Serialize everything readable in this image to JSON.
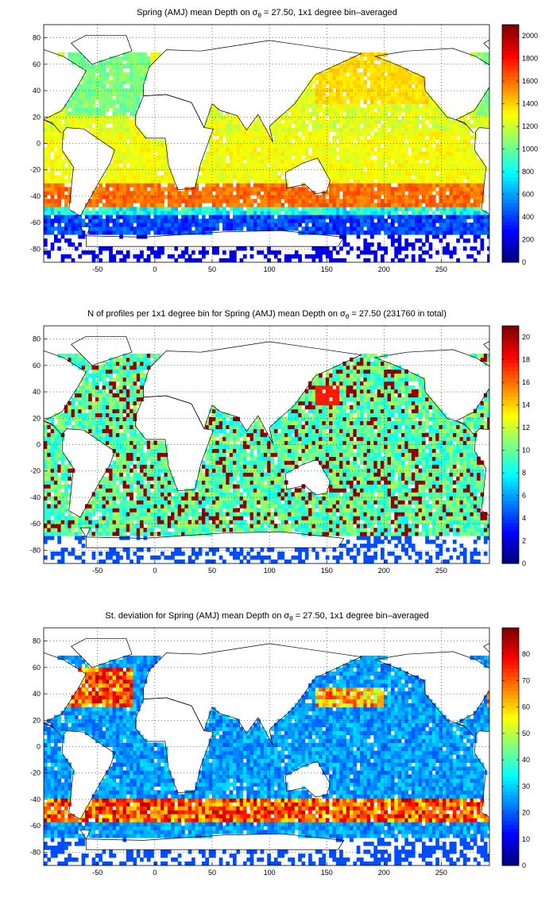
{
  "chart_data": [
    {
      "type": "heatmap",
      "title": "Spring (AMJ) mean Depth on σθ = 27.50, 1x1 degree bin–averaged",
      "title_parts": {
        "pre": "Spring (AMJ) mean Depth on σ",
        "sub": "θ",
        "post": " = 27.50, 1x1 degree bin–averaged"
      },
      "x_ticks": [
        -50,
        0,
        50,
        100,
        150,
        200,
        250
      ],
      "y_ticks": [
        -80,
        -60,
        -40,
        -20,
        0,
        20,
        40,
        60,
        80
      ],
      "xlim": [
        -97,
        292
      ],
      "ylim": [
        -90,
        90
      ],
      "colorbar": {
        "min": 0,
        "max": 2100,
        "ticks": [
          0,
          200,
          400,
          600,
          800,
          1000,
          1200,
          1400,
          1600,
          1800,
          2000
        ],
        "colormap": "jet"
      },
      "grid": true,
      "field": "depth"
    },
    {
      "type": "heatmap",
      "title": "N of profiles per 1x1 degree bin for Spring (AMJ) mean Depth on σθ = 27.50 (231760 in total)",
      "title_parts": {
        "pre": "N of profiles per 1x1 degree bin for Spring (AMJ) mean Depth on σ",
        "sub": "θ",
        "post": " = 27.50 (231760 in total)"
      },
      "x_ticks": [
        -50,
        0,
        50,
        100,
        150,
        200,
        250
      ],
      "y_ticks": [
        -80,
        -60,
        -40,
        -20,
        0,
        20,
        40,
        60,
        80
      ],
      "xlim": [
        -97,
        292
      ],
      "ylim": [
        -90,
        90
      ],
      "colorbar": {
        "min": 0,
        "max": 21,
        "ticks": [
          0,
          2,
          4,
          6,
          8,
          10,
          12,
          14,
          16,
          18,
          20
        ],
        "colormap": "jet"
      },
      "grid": true,
      "field": "count"
    },
    {
      "type": "heatmap",
      "title": "St. deviation for Spring (AMJ) mean Depth on σθ = 27.50, 1x1 degree bin–averaged",
      "title_parts": {
        "pre": "St. deviation for Spring (AMJ) mean Depth on σ",
        "sub": "θ",
        "post": " = 27.50, 1x1 degree bin–averaged"
      },
      "x_ticks": [
        -50,
        0,
        50,
        100,
        150,
        200,
        250
      ],
      "y_ticks": [
        -80,
        -60,
        -40,
        -20,
        0,
        20,
        40,
        60,
        80
      ],
      "xlim": [
        -97,
        292
      ],
      "ylim": [
        -90,
        90
      ],
      "colorbar": {
        "min": 0,
        "max": 90,
        "ticks": [
          0,
          10,
          20,
          30,
          40,
          50,
          60,
          70,
          80
        ],
        "colormap": "jet"
      },
      "grid": true,
      "field": "std"
    }
  ]
}
